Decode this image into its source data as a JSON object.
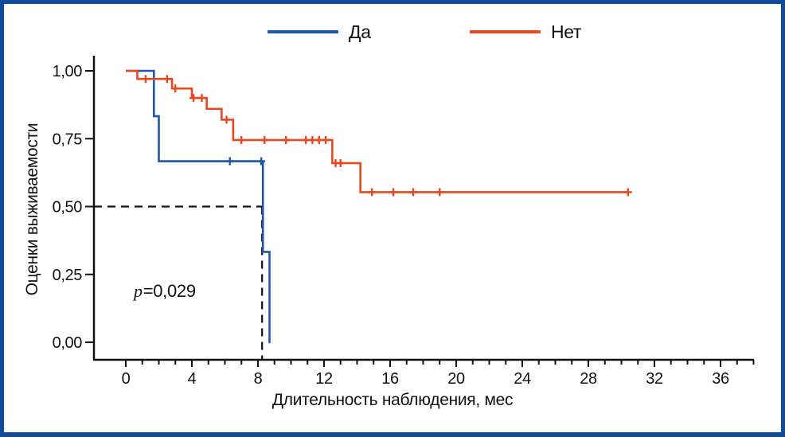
{
  "legend": {
    "items": [
      {
        "label": "Да",
        "color": "#1F57A8"
      },
      {
        "label": "Нет",
        "color": "#E8481E"
      }
    ]
  },
  "frame_border_color": "#0E4D9D",
  "axis_color": "#111111",
  "chart_data": {
    "type": "line",
    "subtype": "kaplan-meier-step-survival",
    "title": "",
    "xlabel": "Длительность наблюдения, мес",
    "ylabel": "Оценки выживаемости",
    "xlim": [
      0,
      38
    ],
    "ylim": [
      0,
      1
    ],
    "grid": false,
    "legend_position": "top",
    "xticks_major": [
      0,
      4,
      8,
      12,
      16,
      20,
      24,
      28,
      32,
      36
    ],
    "xtick_labels": [
      "0",
      "4",
      "8",
      "12",
      "16",
      "20",
      "24",
      "28",
      "32",
      "36"
    ],
    "xticks_minor_step": 1,
    "yticks": [
      0,
      0.25,
      0.5,
      0.75,
      1
    ],
    "ytick_labels": [
      "0,00",
      "0,25",
      "0,50",
      "0,75",
      "1,00"
    ],
    "series": [
      {
        "name": "Да",
        "color": "#1F57A8",
        "steps": [
          [
            0,
            1.0
          ],
          [
            1.7,
            0.833
          ],
          [
            2.0,
            0.667
          ],
          [
            8.3,
            0.333
          ],
          [
            8.7,
            0.0
          ]
        ],
        "end": 8.75,
        "censors": [
          [
            6.3,
            0.667
          ],
          [
            8.2,
            0.667
          ]
        ]
      },
      {
        "name": "Нет",
        "color": "#E8481E",
        "steps": [
          [
            0,
            1.0
          ],
          [
            0.7,
            0.97
          ],
          [
            2.8,
            0.935
          ],
          [
            4.0,
            0.9
          ],
          [
            4.9,
            0.86
          ],
          [
            5.8,
            0.82
          ],
          [
            6.5,
            0.745
          ],
          [
            12.5,
            0.66
          ],
          [
            14.2,
            0.553
          ]
        ],
        "end": 30.4,
        "censors": [
          [
            1.2,
            0.97
          ],
          [
            2.5,
            0.97
          ],
          [
            3.0,
            0.935
          ],
          [
            4.1,
            0.9
          ],
          [
            4.6,
            0.9
          ],
          [
            6.1,
            0.82
          ],
          [
            7.0,
            0.745
          ],
          [
            8.4,
            0.745
          ],
          [
            9.7,
            0.745
          ],
          [
            10.9,
            0.745
          ],
          [
            11.3,
            0.745
          ],
          [
            11.7,
            0.745
          ],
          [
            12.1,
            0.745
          ],
          [
            12.7,
            0.66
          ],
          [
            13.0,
            0.66
          ],
          [
            14.9,
            0.553
          ],
          [
            16.2,
            0.553
          ],
          [
            17.4,
            0.553
          ],
          [
            19.0,
            0.553
          ],
          [
            30.4,
            0.553
          ]
        ]
      }
    ],
    "median_lines": {
      "h": {
        "y": 0.5,
        "x_to": 8.3
      },
      "v": {
        "x": 8.25,
        "y_from": 0.5
      }
    },
    "annotation": {
      "prefix": "p",
      "rest": "=0,029",
      "x": 2.4,
      "y": 0.2
    }
  }
}
